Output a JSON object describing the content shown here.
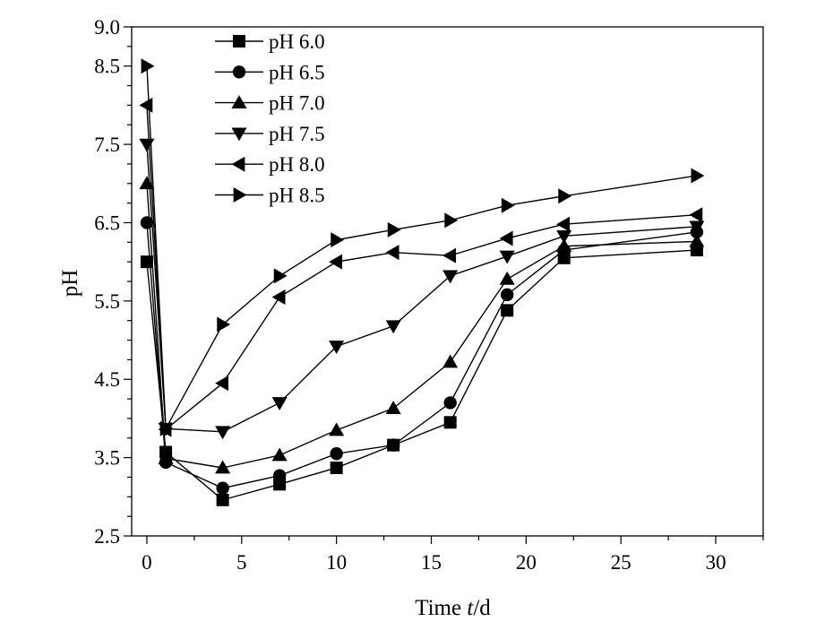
{
  "chart_data": {
    "type": "line",
    "title": "",
    "xlabel": "Time ",
    "xlabel_var": "t",
    "xlabel_unit": "/d",
    "ylabel": "pH",
    "xlim": [
      -0.8,
      32.5
    ],
    "ylim": [
      2.5,
      9.0
    ],
    "xticks": [
      "0",
      "5",
      "10",
      "15",
      "20",
      "25",
      "30"
    ],
    "yticks": [
      "2.5",
      "3.5",
      "4.5",
      "5.5",
      "6.5",
      "7.5",
      "8.5",
      "9.0"
    ],
    "legend_position": "top-left",
    "grid": false,
    "x": [
      0,
      1,
      4,
      7,
      10,
      13,
      16,
      19,
      22,
      29
    ],
    "series": [
      {
        "name": "pH 6.0",
        "marker": "square",
        "values": [
          6.0,
          3.57,
          2.96,
          3.16,
          3.37,
          3.66,
          3.95,
          5.38,
          6.05,
          6.15
        ]
      },
      {
        "name": "pH 6.5",
        "marker": "circle",
        "values": [
          6.5,
          3.44,
          3.11,
          3.27,
          3.55,
          3.66,
          4.2,
          5.58,
          6.15,
          6.38
        ]
      },
      {
        "name": "pH 7.0",
        "marker": "triangle-up",
        "values": [
          7.0,
          3.49,
          3.37,
          3.53,
          3.85,
          4.13,
          4.72,
          5.78,
          6.2,
          6.26
        ]
      },
      {
        "name": "pH 7.5",
        "marker": "triangle-down",
        "values": [
          7.5,
          3.87,
          3.83,
          4.2,
          4.92,
          5.18,
          5.82,
          6.07,
          6.33,
          6.45
        ]
      },
      {
        "name": "pH 8.0",
        "marker": "triangle-left",
        "values": [
          8.0,
          3.86,
          4.45,
          5.55,
          6.0,
          6.12,
          6.08,
          6.3,
          6.48,
          6.6
        ]
      },
      {
        "name": "pH 8.5",
        "marker": "triangle-right",
        "values": [
          8.5,
          3.87,
          5.2,
          5.82,
          6.28,
          6.41,
          6.53,
          6.72,
          6.84,
          7.1
        ]
      }
    ]
  }
}
